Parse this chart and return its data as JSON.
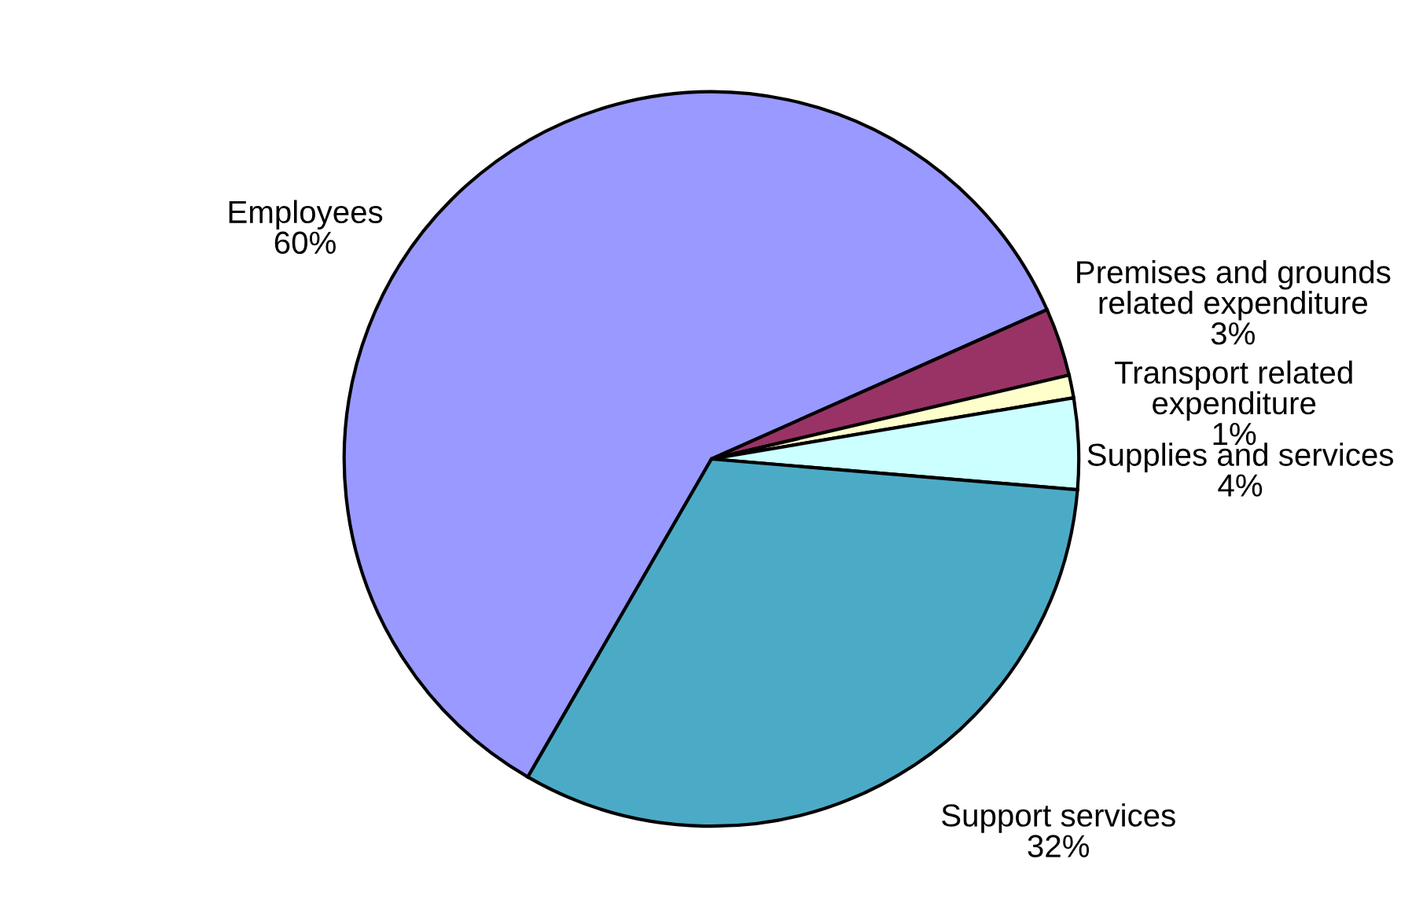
{
  "chart_data": {
    "type": "pie",
    "categories": [
      "Employees",
      "Premises and grounds\nrelated expenditure",
      "Transport related\nexpenditure",
      "Supplies and services",
      "Support services"
    ],
    "values": [
      60,
      3,
      1,
      4,
      32
    ],
    "colors": [
      "#9999ff",
      "#993366",
      "#ffffcc",
      "#ccffff",
      "#4babc6"
    ],
    "value_labels": [
      "60%",
      "3%",
      "1%",
      "4%",
      "32%"
    ],
    "legend": false
  }
}
